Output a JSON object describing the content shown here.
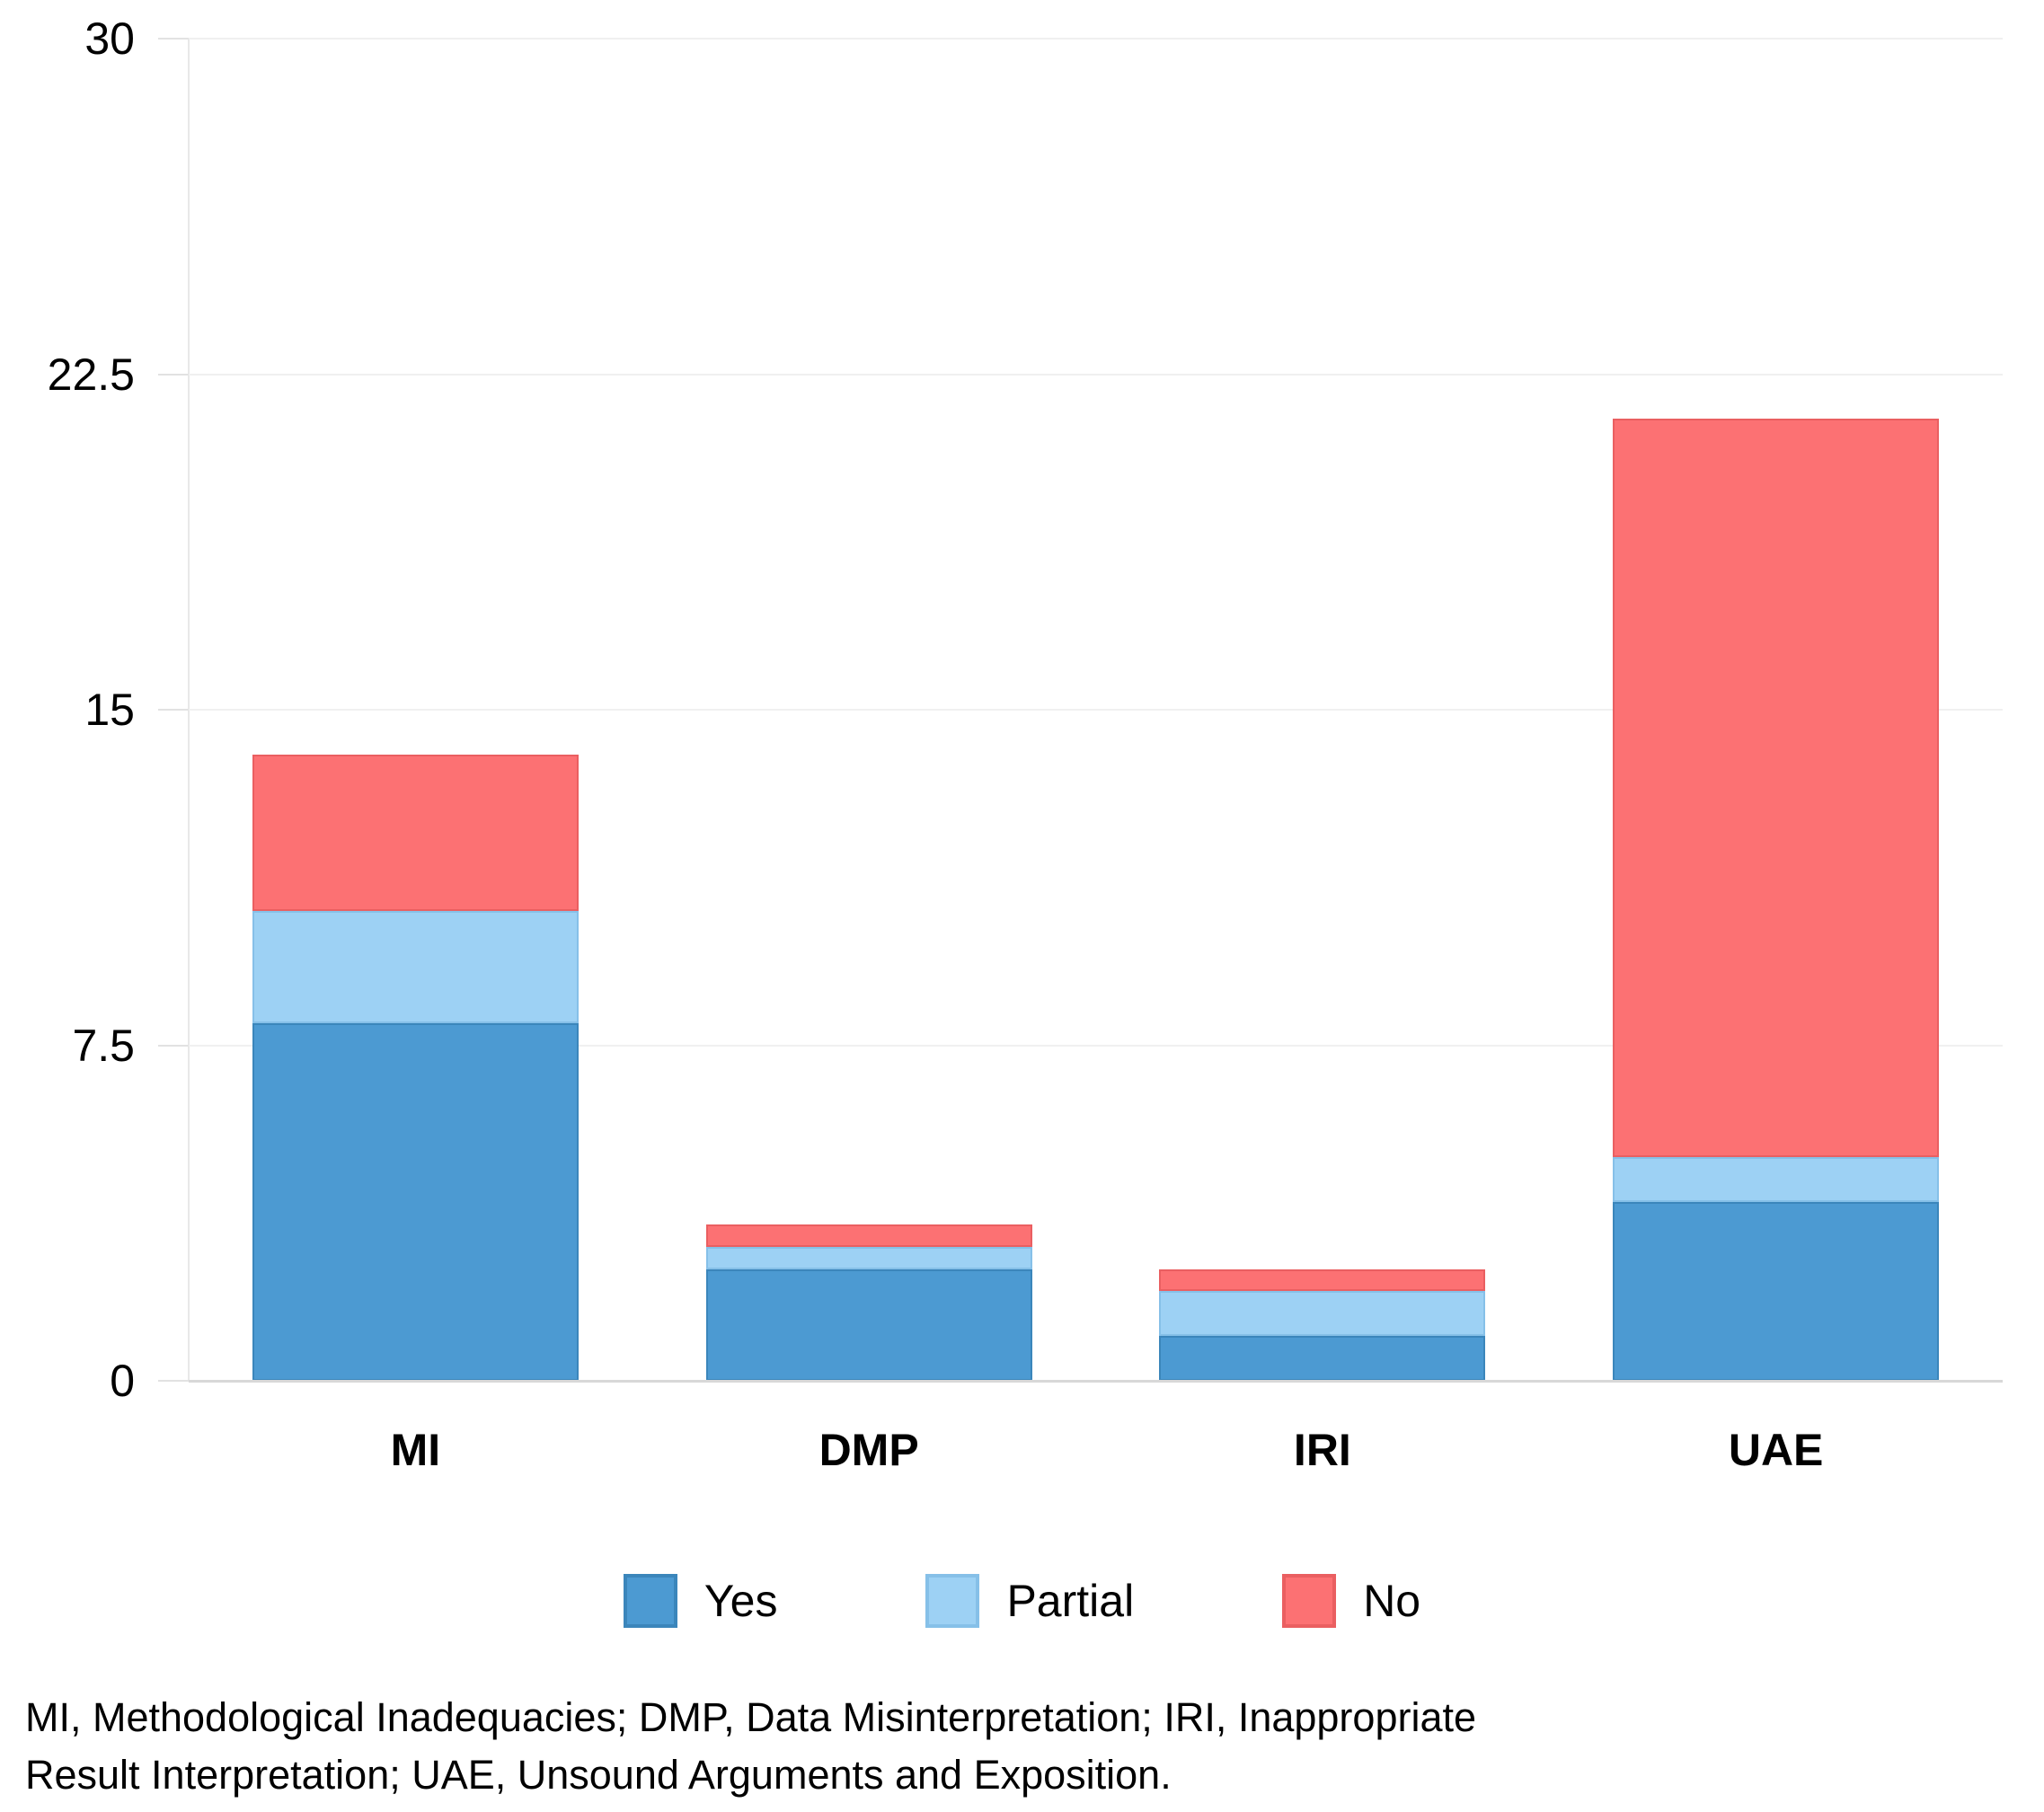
{
  "chart_data": {
    "type": "bar",
    "stacked": true,
    "title": "",
    "xlabel": "",
    "ylabel": "",
    "categories": [
      "MI",
      "DMP",
      "IRI",
      "UAE"
    ],
    "series": [
      {
        "name": "Yes",
        "color": "#4C9AD2",
        "border_color": "#3b86bb",
        "values": [
          8,
          2.5,
          1,
          4
        ]
      },
      {
        "name": "Partial",
        "color": "#9DD1F4",
        "border_color": "#86c0e8",
        "values": [
          2.5,
          0.5,
          1,
          1
        ]
      },
      {
        "name": "No",
        "color": "#FC7173",
        "border_color": "#ea5f61",
        "values": [
          3.5,
          0.5,
          0.5,
          16.5
        ]
      }
    ],
    "ylim": [
      0,
      30
    ],
    "yticks": [
      {
        "value": 0,
        "label": "0"
      },
      {
        "value": 7.5,
        "label": "7.5"
      },
      {
        "value": 15,
        "label": "15"
      },
      {
        "value": 22.5,
        "label": "22.5"
      },
      {
        "value": 30,
        "label": "30"
      }
    ],
    "grid": "horizontal",
    "legend_position": "bottom"
  },
  "legend": {
    "items": [
      {
        "label": "Yes"
      },
      {
        "label": "Partial"
      },
      {
        "label": "No"
      }
    ]
  },
  "caption": {
    "line1": "MI, Methodological Inadequacies; DMP, Data Misinterpretation; IRI, Inappropriate",
    "line2": "Result Interpretation; UAE, Unsound Arguments and Exposition."
  },
  "colors": {
    "yes": "#4C9AD2",
    "partial": "#9DD1F4",
    "no": "#FC7173",
    "gridline": "#f0f0f0",
    "baseline": "#d8d8d8",
    "axis_line": "#e8e8e8",
    "text": "#000000"
  }
}
